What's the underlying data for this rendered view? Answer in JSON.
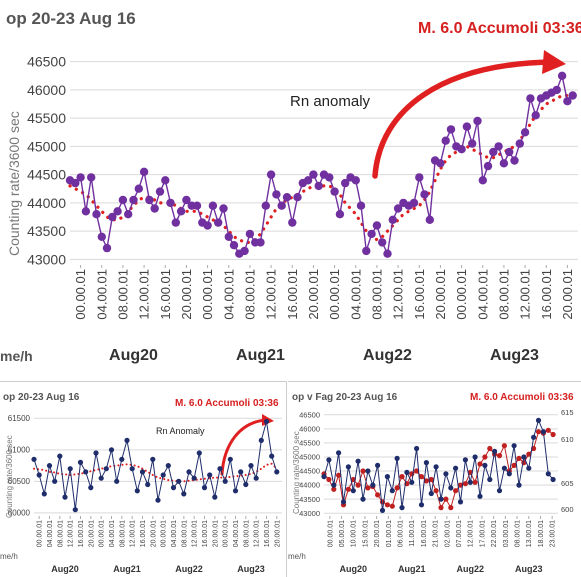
{
  "chart_data": [
    {
      "type": "line",
      "title": "op 20-23 Aug 16",
      "annotation_event": "M. 6.0 Accumoli 03:36",
      "annotation_note": "Rn anomaly",
      "ylabel": "Counting rate/3600 sec",
      "xunit": "me/h",
      "ylim": [
        42900,
        46600
      ],
      "yticks": [
        "43000",
        "43500",
        "44000",
        "44500",
        "45000",
        "45500",
        "46000",
        "46500"
      ],
      "xticks": [
        "00.00.01",
        "04.00.01",
        "08.00.01",
        "12.00.01",
        "16.00.01",
        "20.00.01",
        "00.00.01",
        "04.00.01",
        "08.00.01",
        "12.00.01",
        "16.00.01",
        "20.00.01",
        "00.00.01",
        "04.00.01",
        "08.00.01",
        "12.00.01",
        "16.00.01",
        "20.00.01",
        "00.00.01",
        "04.00.01",
        "08.00.01",
        "12.00.01",
        "16.00.01",
        "20.00.01"
      ],
      "days": [
        "Aug20",
        "Aug21",
        "Aug22",
        "Aug23"
      ],
      "grid": true,
      "colors": {
        "data": "#7030a0",
        "trend": "#e02020"
      },
      "x_hours": [
        0,
        1,
        2,
        3,
        4,
        5,
        6,
        7,
        8,
        9,
        10,
        11,
        12,
        13,
        14,
        15,
        16,
        17,
        18,
        19,
        20,
        21,
        22,
        23,
        24,
        25,
        26,
        27,
        28,
        29,
        30,
        31,
        32,
        33,
        34,
        35,
        36,
        37,
        38,
        39,
        40,
        41,
        42,
        43,
        44,
        45,
        46,
        47,
        48,
        49,
        50,
        51,
        52,
        53,
        54,
        55,
        56,
        57,
        58,
        59,
        60,
        61,
        62,
        63,
        64,
        65,
        66,
        67,
        68,
        69,
        70,
        71,
        72,
        73,
        74,
        75,
        76,
        77,
        78,
        79,
        80,
        81,
        82,
        83,
        84,
        85,
        86,
        87,
        88,
        89,
        90,
        91,
        92,
        93,
        94,
        95
      ],
      "values": [
        44400,
        44350,
        44450,
        43850,
        44450,
        43800,
        43400,
        43200,
        43750,
        43850,
        44050,
        43800,
        44050,
        44250,
        44550,
        44050,
        43900,
        44200,
        44400,
        44000,
        43650,
        43850,
        44050,
        43950,
        43950,
        43650,
        43600,
        43950,
        43650,
        43900,
        43400,
        43250,
        43100,
        43150,
        43450,
        43300,
        43300,
        43950,
        44500,
        44150,
        43950,
        44100,
        43650,
        44100,
        44350,
        44400,
        44500,
        44300,
        44500,
        44450,
        44200,
        43800,
        44350,
        44450,
        44400,
        43950,
        43150,
        43450,
        43600,
        43300,
        43100,
        43700,
        43900,
        44000,
        43950,
        44000,
        44450,
        44150,
        43700,
        44750,
        44700,
        45100,
        45300,
        45000,
        44950,
        45350,
        45050,
        45450,
        44400,
        44650,
        44900,
        45000,
        44700,
        44900,
        44750,
        45050,
        45250,
        45850,
        45550,
        45850,
        45900,
        45950,
        46000,
        46250,
        45800,
        45900
      ],
      "trend": [
        44300,
        44250,
        44200,
        44150,
        44050,
        43950,
        43850,
        43750,
        43700,
        43700,
        43750,
        43850,
        43950,
        44050,
        44100,
        44100,
        44050,
        44000,
        44000,
        44000,
        43950,
        43900,
        43850,
        43850,
        43850,
        43800,
        43750,
        43700,
        43650,
        43600,
        43500,
        43400,
        43350,
        43300,
        43300,
        43350,
        43450,
        43600,
        43750,
        43900,
        44000,
        44050,
        44100,
        44150,
        44200,
        44250,
        44300,
        44300,
        44300,
        44300,
        44250,
        44150,
        44000,
        43900,
        43800,
        43650,
        43500,
        43400,
        43350,
        43400,
        43500,
        43600,
        43700,
        43800,
        43850,
        43900,
        43950,
        44050,
        44200,
        44400,
        44600,
        44750,
        44850,
        44900,
        44950,
        45000,
        44950,
        44900,
        44850,
        44800,
        44800,
        44850,
        44900,
        44950,
        45000,
        45100,
        45250,
        45400,
        45550,
        45650,
        45750,
        45800,
        45850,
        45900,
        45900,
        45900
      ]
    },
    {
      "type": "line",
      "title": "op 20-23 Aug 16",
      "annotation_event": "M. 6.0 Accumoli 03:36",
      "annotation_note": "Rn Anomaly",
      "ylabel": "Counting rate/3600 sec",
      "xunit": "me/h",
      "ylim": [
        59950,
        61600
      ],
      "yticks": [
        "60000",
        "60500",
        "61000",
        "61500"
      ],
      "xticks": [
        "00.00.01",
        "04.00.01",
        "08.00.01",
        "12.00.01",
        "16.00.01",
        "20.00.01",
        "00.00.01",
        "04.00.01",
        "08.00.01",
        "12.00.01",
        "16.00.01",
        "20.00.01",
        "00.00.01",
        "04.00.01",
        "08.00.01",
        "12.00.01",
        "16.00.01",
        "20.00.01",
        "00.00.01",
        "04.00.01",
        "08.00.01",
        "12.00.01",
        "16.00.01",
        "20.00.01"
      ],
      "days": [
        "Aug20",
        "Aug21",
        "Aug22",
        "Aug23"
      ],
      "grid": true,
      "colors": {
        "data": "#1f2d6b",
        "trend": "#e02020"
      },
      "x_hours": [
        0,
        2,
        4,
        6,
        8,
        10,
        12,
        14,
        16,
        18,
        20,
        22,
        24,
        26,
        28,
        30,
        32,
        34,
        36,
        38,
        40,
        42,
        44,
        46,
        48,
        50,
        52,
        54,
        56,
        58,
        60,
        62,
        64,
        66,
        68,
        70,
        72,
        74,
        76,
        78,
        80,
        82,
        84,
        86,
        88,
        90,
        92,
        94
      ],
      "values": [
        60850,
        60600,
        60300,
        60750,
        60500,
        60900,
        60250,
        60700,
        60050,
        60800,
        60650,
        60400,
        60950,
        60550,
        60700,
        61000,
        60500,
        60850,
        61150,
        60700,
        60350,
        60650,
        60450,
        60850,
        60200,
        60600,
        60750,
        60400,
        60500,
        60300,
        60650,
        60550,
        60950,
        60400,
        60600,
        60250,
        60700,
        60500,
        60850,
        60350,
        60650,
        60450,
        60750,
        60550,
        61150,
        61450,
        60900,
        60650
      ],
      "trend": [
        60700,
        60690,
        60680,
        60650,
        60640,
        60620,
        60610,
        60600,
        60610,
        60620,
        60640,
        60660,
        60680,
        60700,
        60720,
        60740,
        60750,
        60760,
        60770,
        60760,
        60740,
        60700,
        60650,
        60600,
        60560,
        60540,
        60520,
        60510,
        60500,
        60500,
        60510,
        60520,
        60530,
        60540,
        60550,
        60560,
        60560,
        60560,
        60570,
        60580,
        60590,
        60600,
        60620,
        60650,
        60700,
        60760,
        60780,
        60700
      ]
    },
    {
      "type": "line",
      "title": "op v Fag 20-23 Aug 16",
      "annotation_event": "M. 6.0 Accumoli 03:36",
      "ylabel": "Counting rate/3600 sec",
      "xunit": "me/h",
      "ylim": [
        42900,
        46600
      ],
      "yticks": [
        "43000",
        "43500",
        "44000",
        "44500",
        "45000",
        "45500",
        "46000",
        "46500"
      ],
      "yticks_right": [
        "600",
        "605",
        "610",
        "615"
      ],
      "xticks": [
        "00.00.01",
        "05.00.01",
        "10.00.01",
        "15.00.01",
        "20.00.01",
        "01.00.01",
        "06.00.01",
        "11.00.01",
        "16.00.01",
        "21.00.01",
        "02.00.01",
        "07.00.01",
        "12.00.01",
        "17.00.01",
        "22.00.01",
        "03.00.01",
        "08.00.01",
        "13.00.01",
        "18.00.01",
        "23.00.01"
      ],
      "days": [
        "Aug20",
        "Aug21",
        "Aug22",
        "Aug23"
      ],
      "grid": true,
      "colors": {
        "series_a": "#c02020",
        "series_b": "#1f2d6b"
      },
      "x_hours": [
        0,
        2,
        4,
        6,
        8,
        10,
        12,
        14,
        16,
        18,
        20,
        22,
        24,
        26,
        28,
        30,
        32,
        34,
        36,
        38,
        40,
        42,
        44,
        46,
        48,
        50,
        52,
        54,
        56,
        58,
        60,
        62,
        64,
        66,
        68,
        70,
        72,
        74,
        76,
        78,
        80,
        82,
        84,
        86,
        88,
        90,
        92,
        94
      ],
      "series": [
        {
          "values": [
            44400,
            44200,
            43850,
            44350,
            43300,
            43850,
            44200,
            44000,
            44500,
            43900,
            43950,
            43650,
            43400,
            43300,
            43250,
            43900,
            44300,
            44050,
            44400,
            44500,
            44300,
            44150,
            44200,
            43800,
            43200,
            43500,
            43200,
            43800,
            44000,
            44050,
            44450,
            44100,
            44750,
            45000,
            45300,
            45100,
            45050,
            45400,
            44500,
            44700,
            44950,
            44800,
            45100,
            45300,
            45900,
            45850,
            45950,
            45800
          ]
        },
        {
          "values": [
            44300,
            44900,
            44000,
            45150,
            43400,
            44650,
            43800,
            44850,
            43500,
            44500,
            44000,
            44700,
            43100,
            44300,
            43800,
            44950,
            43200,
            44450,
            44100,
            45300,
            43300,
            44800,
            43700,
            44650,
            43500,
            44400,
            43900,
            44600,
            43400,
            44900,
            44100,
            45000,
            43600,
            44700,
            44200,
            45200,
            43800,
            44600,
            44400,
            45400,
            44000,
            45000,
            44600,
            45700,
            46300,
            45900,
            44400,
            44200
          ]
        }
      ]
    }
  ]
}
